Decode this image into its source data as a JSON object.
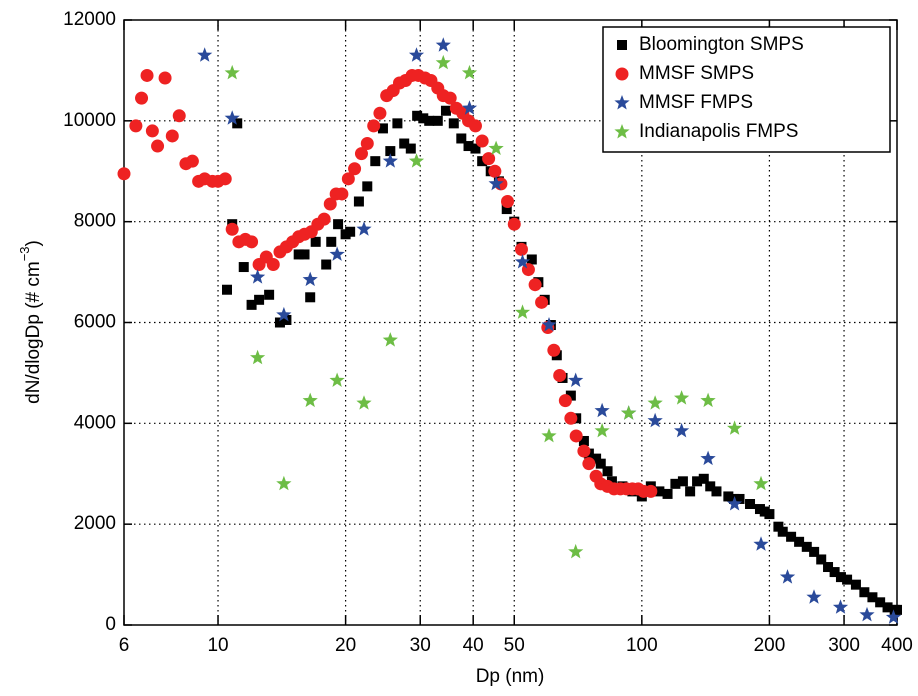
{
  "chart_data": {
    "type": "scatter",
    "xlabel": "Dp (nm)",
    "ylabel": "dN/dlogDp (# cm",
    "ylabel_sup": "−3",
    "ylabel_end": ")",
    "xscale": "log",
    "xlim": [
      6,
      400
    ],
    "xticks": [
      6,
      10,
      20,
      30,
      40,
      50,
      100,
      200,
      300,
      400
    ],
    "ylim": [
      0,
      12000
    ],
    "yticks": [
      0,
      2000,
      4000,
      6000,
      8000,
      10000,
      12000
    ],
    "grid": true,
    "legend": "upper right",
    "series": [
      {
        "name": "Bloomington SMPS",
        "color": "#000000",
        "marker": "square",
        "x": [
          10.5,
          10.8,
          11.1,
          11.5,
          12.0,
          12.5,
          13.2,
          14.0,
          14.5,
          15.5,
          16.0,
          16.5,
          17.0,
          18.0,
          18.5,
          19.2,
          20.0,
          20.5,
          21.5,
          22.5,
          23.5,
          24.5,
          25.5,
          26.5,
          27.5,
          28.5,
          29.5,
          30.5,
          31.5,
          33,
          34.5,
          36,
          37.5,
          39,
          40.5,
          42,
          44,
          46,
          48,
          50,
          52,
          55,
          57,
          59,
          61,
          63,
          65,
          68,
          70,
          73,
          75,
          78,
          80,
          83,
          85,
          90,
          93,
          95,
          100,
          105,
          110,
          115,
          120,
          125,
          130,
          135,
          140,
          145,
          150,
          160,
          165,
          170,
          180,
          190,
          195,
          200,
          210,
          215,
          225,
          235,
          245,
          255,
          265,
          275,
          285,
          295,
          305,
          320,
          335,
          350,
          365,
          380,
          395,
          400
        ],
        "values": [
          6650,
          7950,
          9950,
          7100,
          6350,
          6450,
          6550,
          6000,
          6050,
          7350,
          7350,
          6500,
          7600,
          7150,
          7600,
          7950,
          7750,
          7800,
          8400,
          8700,
          9200,
          9850,
          9400,
          9950,
          9550,
          9450,
          10100,
          10050,
          10000,
          10000,
          10200,
          9950,
          9650,
          9500,
          9450,
          9200,
          9000,
          8800,
          8250,
          8000,
          7500,
          7250,
          6800,
          6450,
          5950,
          5350,
          4900,
          4550,
          4100,
          3650,
          3400,
          3300,
          3200,
          3050,
          2850,
          2750,
          2700,
          2650,
          2550,
          2750,
          2650,
          2600,
          2800,
          2850,
          2650,
          2850,
          2900,
          2750,
          2650,
          2550,
          2500,
          2500,
          2400,
          2300,
          2250,
          2200,
          1950,
          1850,
          1750,
          1650,
          1550,
          1450,
          1300,
          1150,
          1050,
          950,
          900,
          800,
          650,
          550,
          450,
          350,
          300,
          300
        ]
      },
      {
        "name": "MMSF SMPS",
        "color": "#ee2222",
        "marker": "circle",
        "x": [
          6.0,
          6.4,
          6.6,
          6.8,
          7.0,
          7.2,
          7.5,
          7.8,
          8.1,
          8.4,
          8.7,
          9.0,
          9.3,
          9.7,
          10.0,
          10.4,
          10.8,
          11.2,
          11.6,
          12.0,
          12.5,
          13.0,
          13.5,
          14.0,
          14.5,
          15.0,
          15.5,
          16.0,
          16.6,
          17.2,
          17.8,
          18.4,
          19.0,
          19.6,
          20.3,
          21.0,
          21.8,
          22.5,
          23.3,
          24.1,
          25.0,
          25.9,
          26.8,
          27.7,
          28.7,
          29.7,
          30.8,
          31.8,
          33,
          34,
          35.3,
          36.5,
          37.8,
          39,
          40.5,
          42,
          43.5,
          45,
          46.5,
          48.2,
          50,
          52,
          54,
          56,
          58,
          60,
          62,
          64,
          66,
          68,
          70,
          73,
          75,
          78,
          80,
          83,
          86,
          89,
          92,
          95,
          98,
          101,
          105
        ],
        "values": [
          8950,
          9900,
          10450,
          10900,
          9800,
          9500,
          10850,
          9700,
          10100,
          9150,
          9200,
          8800,
          8850,
          8800,
          8800,
          8850,
          7850,
          7600,
          7650,
          7600,
          7150,
          7300,
          7150,
          7400,
          7500,
          7600,
          7700,
          7750,
          7800,
          7950,
          8050,
          8350,
          8550,
          8550,
          8850,
          9050,
          9350,
          9550,
          9900,
          10150,
          10500,
          10600,
          10750,
          10800,
          10900,
          10900,
          10850,
          10800,
          10650,
          10500,
          10450,
          10250,
          10150,
          10000,
          9900,
          9600,
          9250,
          9000,
          8750,
          8400,
          7950,
          7450,
          7050,
          6750,
          6400,
          5900,
          5450,
          4950,
          4450,
          4100,
          3750,
          3450,
          3200,
          2950,
          2800,
          2750,
          2700,
          2700,
          2700,
          2700,
          2700,
          2650,
          2650
        ]
      },
      {
        "name": "MMSF FMPS",
        "color": "#2a4a9a",
        "marker": "star",
        "x": [
          9.3,
          10.8,
          12.4,
          14.3,
          16.5,
          19.1,
          22.1,
          25.5,
          29.4,
          34,
          39.2,
          45.3,
          52.3,
          60.4,
          69.8,
          80.6,
          93.1,
          107.5,
          124.1,
          143.3,
          165.5,
          191.1,
          220.7,
          254.8,
          294.3,
          339.8,
          392.4
        ],
        "values": [
          11300,
          10050,
          6900,
          6150,
          6850,
          7350,
          7850,
          9200,
          11300,
          11500,
          10250,
          8750,
          7200,
          5950,
          4850,
          4250,
          4200,
          4050,
          3850,
          3300,
          2400,
          1600,
          950,
          550,
          350,
          200,
          150
        ]
      },
      {
        "name": "Indianapolis FMPS",
        "color": "#6dbd45",
        "marker": "star",
        "x": [
          10.8,
          12.4,
          14.3,
          16.5,
          19.1,
          22.1,
          25.5,
          29.4,
          34,
          39.2,
          45.3,
          52.3,
          60.4,
          69.8,
          80.6,
          93.1,
          107.5,
          124.1,
          143.3,
          165.5,
          191.1
        ],
        "values": [
          10950,
          5300,
          2800,
          4450,
          4850,
          4400,
          5650,
          9200,
          11150,
          10950,
          9450,
          6200,
          3750,
          1450,
          3850,
          4200,
          4400,
          4500,
          4450,
          3900,
          2800
        ]
      }
    ]
  }
}
